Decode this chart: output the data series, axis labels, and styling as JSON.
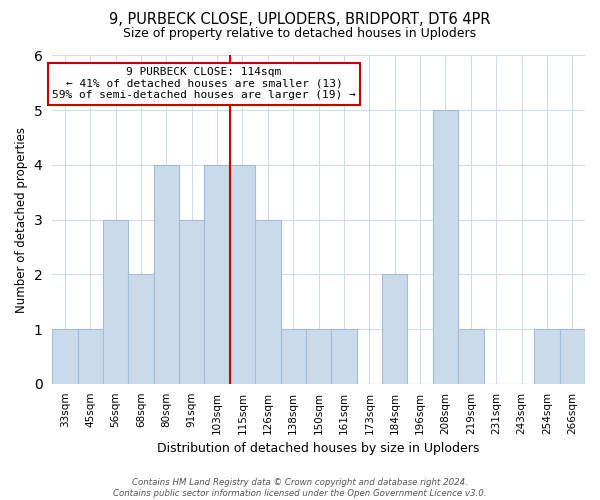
{
  "title": "9, PURBECK CLOSE, UPLODERS, BRIDPORT, DT6 4PR",
  "subtitle": "Size of property relative to detached houses in Uploders",
  "xlabel": "Distribution of detached houses by size in Uploders",
  "ylabel": "Number of detached properties",
  "bin_labels": [
    "33sqm",
    "45sqm",
    "56sqm",
    "68sqm",
    "80sqm",
    "91sqm",
    "103sqm",
    "115sqm",
    "126sqm",
    "138sqm",
    "150sqm",
    "161sqm",
    "173sqm",
    "184sqm",
    "196sqm",
    "208sqm",
    "219sqm",
    "231sqm",
    "243sqm",
    "254sqm",
    "266sqm"
  ],
  "bar_heights": [
    1,
    1,
    3,
    2,
    4,
    3,
    4,
    4,
    3,
    1,
    1,
    1,
    0,
    2,
    0,
    5,
    1,
    0,
    0,
    1,
    1
  ],
  "bar_color": "#c9daea",
  "bar_edge_color": "#a0bcd8",
  "highlight_line_index": 7,
  "highlight_line_color": "#cc0000",
  "annotation_text": "9 PURBECK CLOSE: 114sqm\n← 41% of detached houses are smaller (13)\n59% of semi-detached houses are larger (19) →",
  "annotation_box_color": "#ffffff",
  "annotation_box_edge": "#cc0000",
  "ylim": [
    0,
    6
  ],
  "yticks": [
    0,
    1,
    2,
    3,
    4,
    5,
    6
  ],
  "footer_text": "Contains HM Land Registry data © Crown copyright and database right 2024.\nContains public sector information licensed under the Open Government Licence v3.0.",
  "background_color": "#ffffff",
  "grid_color": "#d0dce8"
}
